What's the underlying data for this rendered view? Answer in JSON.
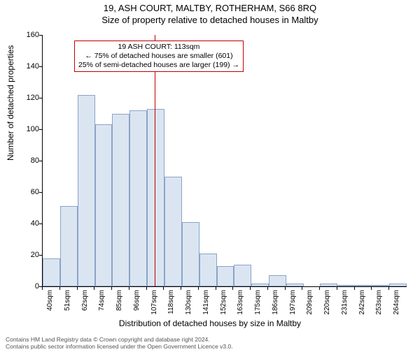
{
  "title": "19, ASH COURT, MALTBY, ROTHERHAM, S66 8RQ",
  "subtitle": "Size of property relative to detached houses in Maltby",
  "ylabel": "Number of detached properties",
  "xlabel": "Distribution of detached houses by size in Maltby",
  "annotation": {
    "line1": "19 ASH COURT: 113sqm",
    "line2": "← 75% of detached houses are smaller (601)",
    "line3": "25% of semi-detached houses are larger (199) →"
  },
  "chart": {
    "type": "histogram",
    "ymax": 160,
    "ytick_step": 20,
    "bar_fill": "#dbe5f1",
    "bar_border": "#8aa4c8",
    "marker_color": "#c00000",
    "marker_x_value": 113,
    "x_min": 40,
    "x_step": 11.3,
    "categories": [
      "40sqm",
      "51sqm",
      "62sqm",
      "74sqm",
      "85sqm",
      "96sqm",
      "107sqm",
      "118sqm",
      "130sqm",
      "141sqm",
      "152sqm",
      "163sqm",
      "175sqm",
      "186sqm",
      "197sqm",
      "209sqm",
      "220sqm",
      "231sqm",
      "242sqm",
      "253sqm",
      "264sqm"
    ],
    "y_tick_values": [
      0,
      20,
      40,
      60,
      80,
      100,
      120,
      140,
      160
    ],
    "values": [
      18,
      51,
      122,
      103,
      110,
      112,
      113,
      70,
      41,
      21,
      13,
      14,
      2,
      7,
      2,
      0,
      2,
      1,
      1,
      1,
      2
    ]
  },
  "footer": {
    "line1": "Contains HM Land Registry data © Crown copyright and database right 2024.",
    "line2": "Contains public sector information licensed under the Open Government Licence v3.0."
  }
}
